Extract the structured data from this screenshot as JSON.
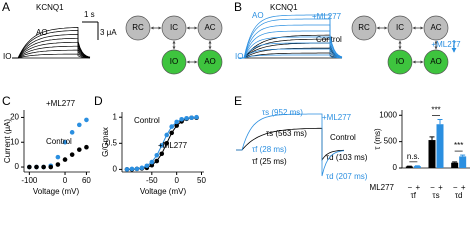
{
  "panel_a": {
    "label": "A",
    "title": "KCNQ1",
    "trace_labels": [
      "AO",
      "IO"
    ],
    "scale_time": "1 s",
    "scale_current": "3 μA",
    "states": [
      "RC",
      "IC",
      "AC",
      "IO",
      "AO"
    ]
  },
  "panel_b": {
    "label": "B",
    "title": "KCNQ1",
    "trace_labels": [
      "AO",
      "+ML277",
      "Control",
      "IO"
    ],
    "states": [
      "RC",
      "IC",
      "AC",
      "IO",
      "AO"
    ],
    "diagram_note": "+ML277"
  },
  "panel_c": {
    "label": "C"
  },
  "panel_d": {
    "label": "D"
  },
  "panel_e": {
    "label": "E",
    "annotations": [
      "τs (952 ms)",
      "+ML277",
      "τs (563 ms)",
      "Control",
      "τf (28 ms)",
      "τf (25 ms)",
      "τd (103 ms)",
      "τd (207 ms)"
    ]
  },
  "chart_data": [
    {
      "type": "scatter",
      "xlabel": "Voltage (mV)",
      "ylabel": "Current (μA)",
      "x": [
        -100,
        -80,
        -60,
        -40,
        -20,
        0,
        20,
        40,
        60
      ],
      "series": [
        {
          "name": "+ML277",
          "color": "#2b8fe0",
          "values": [
            0,
            0,
            0,
            0.5,
            4,
            10,
            14,
            17,
            19
          ]
        },
        {
          "name": "Control",
          "color": "#000000",
          "values": [
            0,
            0,
            0,
            0,
            1,
            3,
            5,
            7,
            8
          ]
        }
      ],
      "xlim": [
        -115,
        70
      ],
      "ylim": [
        -2,
        23
      ],
      "xticks": [
        -100,
        0,
        60
      ],
      "yticks": [
        0,
        10,
        20
      ]
    },
    {
      "type": "scatter",
      "xlabel": "Voltage (mV)",
      "ylabel": "G/Gmax",
      "x": [
        -100,
        -90,
        -80,
        -70,
        -60,
        -50,
        -40,
        -30,
        -20,
        -10,
        0,
        10,
        20,
        30,
        40
      ],
      "series": [
        {
          "name": "Control",
          "color": "#000000",
          "values": [
            0,
            0,
            0.01,
            0.02,
            0.03,
            0.08,
            0.16,
            0.3,
            0.5,
            0.7,
            0.84,
            0.92,
            0.97,
            0.99,
            0.99
          ]
        },
        {
          "name": "+ML277",
          "color": "#2b8fe0",
          "values": [
            0,
            0.01,
            0.01,
            0.03,
            0.07,
            0.14,
            0.27,
            0.46,
            0.66,
            0.82,
            0.91,
            0.96,
            0.98,
            0.99,
            1
          ]
        }
      ],
      "xlim": [
        -110,
        55
      ],
      "ylim": [
        -0.05,
        1.1
      ],
      "xticks": [
        -50,
        0,
        50
      ],
      "yticks": [
        0,
        0.5,
        1
      ]
    },
    {
      "type": "bar",
      "ylabel": "τ (ms)",
      "categories": [
        "τf",
        "τs",
        "τd"
      ],
      "group_row_label": "ML277",
      "group_signs": [
        "−",
        "+"
      ],
      "series": [
        {
          "color": "#000000",
          "values": [
            30,
            530,
            100
          ],
          "errors": [
            5,
            60,
            15
          ]
        },
        {
          "color": "#2b8fe0",
          "values": [
            35,
            830,
            220
          ],
          "errors": [
            6,
            90,
            25
          ]
        }
      ],
      "significance": [
        "n.s.",
        "***",
        "***"
      ],
      "ylim": [
        0,
        1100
      ],
      "yticks": [
        0,
        500,
        1000
      ]
    }
  ]
}
